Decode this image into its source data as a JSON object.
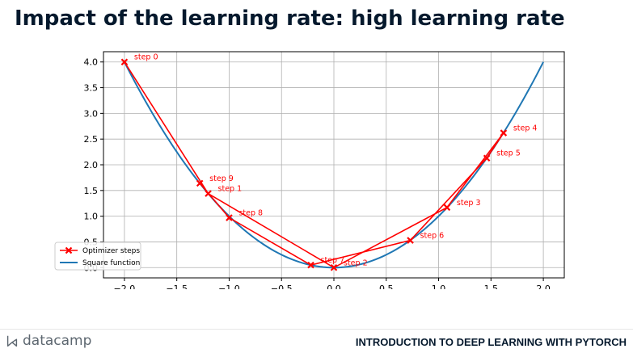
{
  "slide": {
    "title": "Impact of the learning rate: high learning rate"
  },
  "footer": {
    "brand": "datacamp",
    "brand_icon": "datacamp-logo-icon",
    "course": "INTRODUCTION TO DEEP LEARNING WITH PYTORCH"
  },
  "chart_data": {
    "type": "line",
    "title": "",
    "xlabel": "",
    "ylabel": "",
    "xlim": [
      -2.2,
      2.2
    ],
    "ylim": [
      -0.2,
      4.2
    ],
    "xticks": [
      -2.0,
      -1.5,
      -1.0,
      -0.5,
      0.0,
      0.5,
      1.0,
      1.5,
      2.0
    ],
    "xtick_labels": [
      "−2.0",
      "−1.5",
      "−1.0",
      "−0.5",
      "0.0",
      "0.5",
      "1.0",
      "1.5",
      "2.0"
    ],
    "yticks": [
      0.0,
      0.5,
      1.0,
      1.5,
      2.0,
      2.5,
      3.0,
      3.5,
      4.0
    ],
    "ytick_labels": [
      "0.0",
      "0.5",
      "1.0",
      "1.5",
      "2.0",
      "2.5",
      "3.0",
      "3.5",
      "4.0"
    ],
    "grid": true,
    "legend": "lower-left",
    "series": [
      {
        "name": "Optimizer steps",
        "color": "#ff0000",
        "marker": "x",
        "x": [
          -2.0,
          -1.2,
          0.0,
          1.08,
          1.62,
          1.46,
          0.73,
          -0.22,
          -1.0,
          -1.28
        ],
        "y": [
          4.0,
          1.44,
          0.0,
          1.17,
          2.62,
          2.13,
          0.53,
          0.05,
          0.97,
          1.64
        ],
        "labels": [
          "step 0",
          "step 1",
          "step 2",
          "step 3",
          "step 4",
          "step 5",
          "step 6",
          "step 7",
          "step 8",
          "step 9"
        ]
      },
      {
        "name": "Square function",
        "color": "#1f77b4",
        "function": "y = x^2",
        "x_range": [
          -2.0,
          2.0
        ]
      }
    ]
  }
}
